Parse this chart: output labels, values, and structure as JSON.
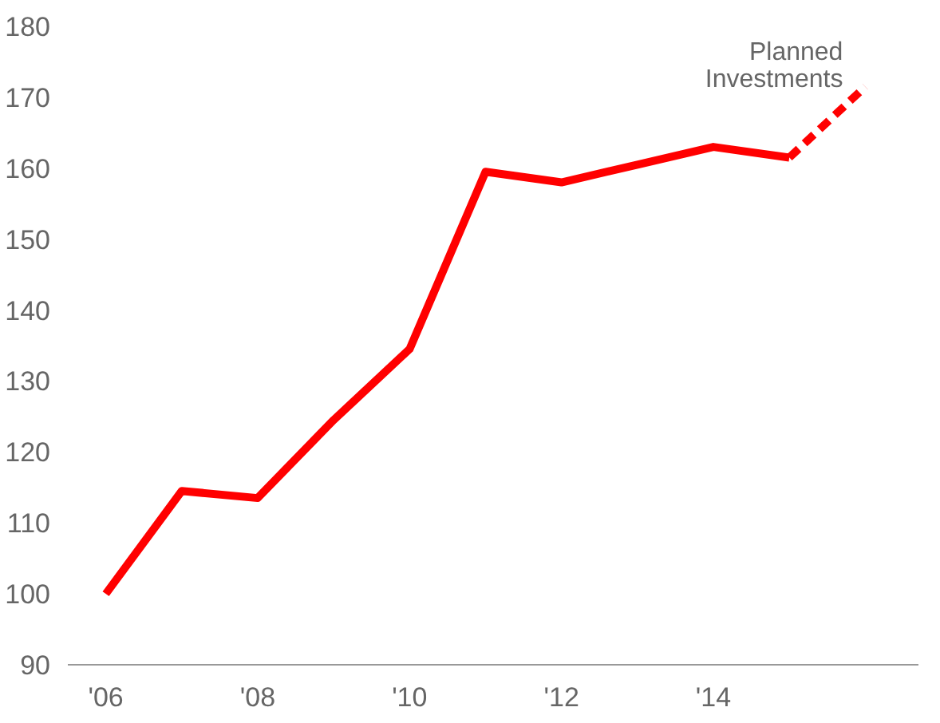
{
  "chart_data": {
    "type": "line",
    "x": [
      2006,
      2007,
      2008,
      2009,
      2010,
      2011,
      2012,
      2013,
      2014,
      2015
    ],
    "series": [
      {
        "color": "#ff0000",
        "values": [
          100,
          114.5,
          113.5,
          124.5,
          134.5,
          159.5,
          158,
          160.5,
          163,
          161.5
        ],
        "line_style": "solid"
      },
      {
        "color": "#ff0000",
        "x": [
          2015,
          2016
        ],
        "values": [
          161.5,
          171.5
        ],
        "line_style": "dashed"
      }
    ],
    "xlim": [
      2005.5,
      2016.7
    ],
    "ylim": [
      90,
      180
    ],
    "xticks": [
      {
        "value": 2006,
        "label": "'06"
      },
      {
        "value": 2008,
        "label": "'08"
      },
      {
        "value": 2010,
        "label": "'10"
      },
      {
        "value": 2012,
        "label": "'12"
      },
      {
        "value": 2014,
        "label": "'14"
      }
    ],
    "yticks": [
      90,
      100,
      110,
      120,
      130,
      140,
      150,
      160,
      170,
      180
    ],
    "grid": false,
    "marker": "none",
    "annotations": [
      {
        "text": "Planned\nInvestments",
        "x": 2016,
        "y": 171.5
      }
    ]
  }
}
